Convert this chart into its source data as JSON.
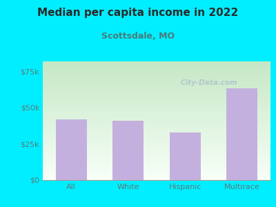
{
  "title": "Median per capita income in 2022",
  "subtitle": "Scottsdale, MO",
  "categories": [
    "All",
    "White",
    "Hispanic",
    "Multirace"
  ],
  "values": [
    42000,
    41000,
    33000,
    63000
  ],
  "bar_color": "#c4b0de",
  "yticks": [
    0,
    25000,
    50000,
    75000
  ],
  "ytick_labels": [
    "$0",
    "$25k",
    "$50k",
    "$75k"
  ],
  "ylim": [
    0,
    82000
  ],
  "bg_outer": "#00eeff",
  "title_color": "#2a2a2a",
  "subtitle_color": "#4a7a7a",
  "watermark": "City-Data.com",
  "tick_color": "#5a7a7a",
  "grad_top": "#c5e8c5",
  "grad_bottom": "#f8fff8"
}
